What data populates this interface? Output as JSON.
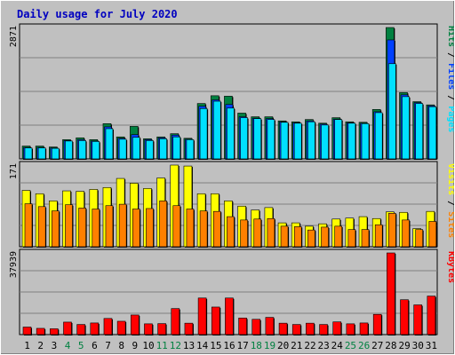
{
  "title": "Daily usage for July 2020",
  "colors": {
    "background": "#c0c0c0",
    "title": "#0000c0",
    "hits": "#008040",
    "files": "#0040ff",
    "pages": "#00e0ff",
    "visits": "#ffff00",
    "sites": "#ff8000",
    "kbytes": "#ff0000",
    "weekend_label": "#008040"
  },
  "chart_data": [
    {
      "type": "bar",
      "name": "hits-files-pages",
      "ymax_label": "2871",
      "ylim": [
        0,
        2871
      ],
      "x": [
        1,
        2,
        3,
        4,
        5,
        6,
        7,
        8,
        9,
        10,
        11,
        12,
        13,
        14,
        15,
        16,
        17,
        18,
        19,
        20,
        21,
        22,
        23,
        24,
        25,
        26,
        27,
        28,
        29,
        30,
        31
      ],
      "series": [
        {
          "name": "Hits",
          "values": [
            280,
            280,
            260,
            420,
            460,
            420,
            770,
            480,
            710,
            440,
            480,
            550,
            450,
            1210,
            1380,
            1370,
            1000,
            920,
            920,
            830,
            810,
            860,
            780,
            900,
            810,
            800,
            1080,
            2871,
            1450,
            1250,
            1180
          ]
        },
        {
          "name": "Files",
          "values": [
            250,
            250,
            240,
            400,
            420,
            390,
            700,
            450,
            530,
            420,
            460,
            520,
            430,
            1150,
            1290,
            1190,
            920,
            890,
            880,
            810,
            790,
            830,
            760,
            870,
            790,
            780,
            1030,
            2600,
            1400,
            1230,
            1160
          ]
        },
        {
          "name": "Pages",
          "values": [
            240,
            240,
            230,
            390,
            400,
            380,
            660,
            430,
            470,
            400,
            440,
            480,
            420,
            1100,
            1260,
            1110,
            900,
            880,
            860,
            800,
            780,
            810,
            740,
            860,
            780,
            770,
            1010,
            2080,
            1360,
            1210,
            1140
          ]
        }
      ],
      "legend": [
        "Pages",
        "Files",
        "Hits"
      ]
    },
    {
      "type": "bar",
      "name": "visits-sites",
      "ymax_label": "171",
      "ylim": [
        0,
        171
      ],
      "x": [
        1,
        2,
        3,
        4,
        5,
        6,
        7,
        8,
        9,
        10,
        11,
        12,
        13,
        14,
        15,
        16,
        17,
        18,
        19,
        20,
        21,
        22,
        23,
        24,
        25,
        26,
        27,
        28,
        29,
        30,
        31
      ],
      "series": [
        {
          "name": "Visits",
          "values": [
            118,
            111,
            96,
            117,
            116,
            120,
            124,
            143,
            133,
            122,
            144,
            171,
            169,
            111,
            111,
            96,
            85,
            77,
            82,
            50,
            50,
            43,
            48,
            58,
            60,
            63,
            59,
            73,
            72,
            38,
            74
          ]
        },
        {
          "name": "Sites",
          "values": [
            90,
            84,
            75,
            88,
            81,
            79,
            86,
            89,
            79,
            80,
            96,
            86,
            79,
            75,
            74,
            63,
            56,
            58,
            59,
            43,
            42,
            35,
            41,
            43,
            36,
            36,
            46,
            70,
            56,
            36,
            53
          ]
        }
      ],
      "legend": [
        "Sites",
        "Visits"
      ]
    },
    {
      "type": "bar",
      "name": "kbytes",
      "ymax_label": "37939",
      "ylim": [
        0,
        37939
      ],
      "x": [
        1,
        2,
        3,
        4,
        5,
        6,
        7,
        8,
        9,
        10,
        11,
        12,
        13,
        14,
        15,
        16,
        17,
        18,
        19,
        20,
        21,
        22,
        23,
        24,
        25,
        26,
        27,
        28,
        29,
        30,
        31
      ],
      "series": [
        {
          "name": "KBytes",
          "values": [
            3500,
            2900,
            2700,
            5800,
            4700,
            5400,
            7500,
            6200,
            9100,
            5000,
            5100,
            12100,
            5300,
            17000,
            12800,
            17000,
            7700,
            7100,
            8000,
            5300,
            4700,
            5300,
            4700,
            5900,
            5000,
            5400,
            9400,
            37939,
            16200,
            13800,
            17900
          ]
        }
      ],
      "legend": [
        "KBytes"
      ]
    }
  ],
  "x_labels": [
    "1",
    "2",
    "3",
    "4",
    "5",
    "6",
    "7",
    "8",
    "9",
    "10",
    "11",
    "12",
    "13",
    "14",
    "15",
    "16",
    "17",
    "18",
    "19",
    "20",
    "21",
    "22",
    "23",
    "24",
    "25",
    "26",
    "27",
    "28",
    "29",
    "30",
    "31"
  ],
  "weekend_days": [
    4,
    5,
    11,
    12,
    18,
    19,
    25,
    26
  ]
}
